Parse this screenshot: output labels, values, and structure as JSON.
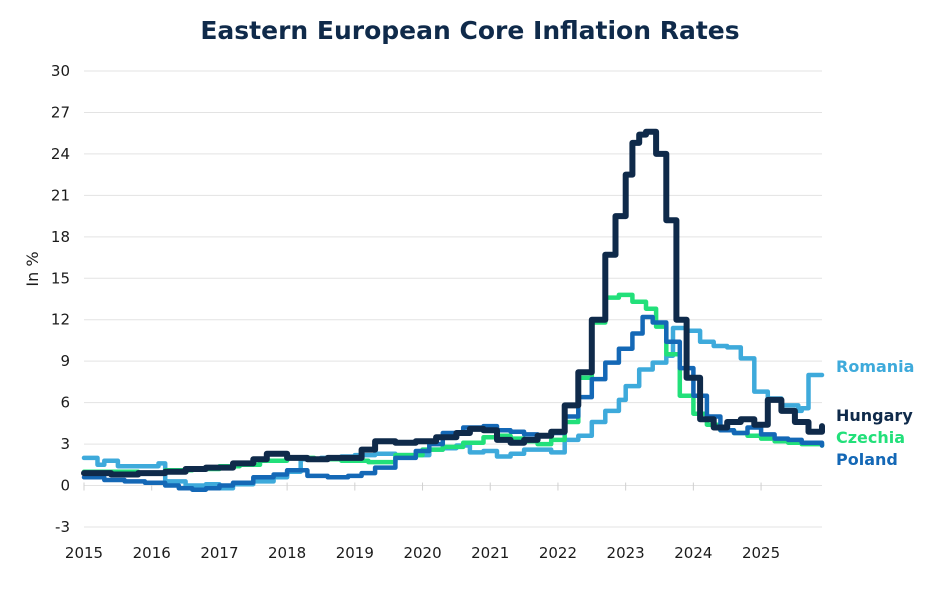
{
  "chart_data": {
    "type": "line",
    "title": "Eastern European Core Inflation Rates",
    "ylabel": "In %",
    "xlabel": "",
    "xlim": [
      2015,
      2025.9
    ],
    "ylim": [
      -3,
      30
    ],
    "yticks": [
      -3,
      0,
      3,
      6,
      9,
      12,
      15,
      18,
      21,
      24,
      27,
      30
    ],
    "xticks": [
      2015,
      2016,
      2017,
      2018,
      2019,
      2020,
      2021,
      2022,
      2023,
      2024,
      2025
    ],
    "grid": "horizontal",
    "legend": "right-end labels",
    "series": [
      {
        "name": "Romania",
        "color": "#3eaadb",
        "x": [
          2015,
          2015.1,
          2015.2,
          2015.3,
          2015.5,
          2015.8,
          2016.1,
          2016.2,
          2016.5,
          2016.8,
          2017.0,
          2017.2,
          2017.5,
          2017.8,
          2018.0,
          2018.2,
          2018.5,
          2018.8,
          2019.0,
          2019.3,
          2019.6,
          2019.9,
          2020.1,
          2020.3,
          2020.5,
          2020.7,
          2020.9,
          2021.1,
          2021.3,
          2021.5,
          2021.7,
          2021.9,
          2022.1,
          2022.3,
          2022.5,
          2022.7,
          2022.9,
          2023.0,
          2023.2,
          2023.4,
          2023.6,
          2023.7,
          2023.9,
          2024.1,
          2024.3,
          2024.5,
          2024.7,
          2024.9,
          2025.1,
          2025.3,
          2025.55,
          2025.6,
          2025.7,
          2025.9
        ],
        "values": [
          2.0,
          2.0,
          1.5,
          1.8,
          1.4,
          1.4,
          1.6,
          0.3,
          0.0,
          0.1,
          -0.2,
          0.1,
          0.3,
          0.6,
          1.0,
          1.9,
          2.0,
          2.1,
          2.2,
          2.3,
          2.2,
          2.2,
          2.6,
          2.7,
          2.9,
          2.4,
          2.5,
          2.1,
          2.3,
          2.6,
          2.6,
          2.4,
          3.3,
          3.6,
          4.6,
          5.4,
          6.2,
          7.2,
          8.4,
          8.9,
          9.4,
          11.4,
          11.2,
          10.4,
          10.1,
          10.0,
          9.2,
          6.8,
          6.3,
          5.8,
          5.4,
          5.6,
          8.0,
          8.0
        ]
      },
      {
        "name": "Hungary",
        "color": "#0f2a4a",
        "x": [
          2015,
          2015.4,
          2015.8,
          2016.2,
          2016.5,
          2016.8,
          2017.2,
          2017.5,
          2017.7,
          2018.0,
          2018.3,
          2018.6,
          2018.9,
          2019.1,
          2019.3,
          2019.6,
          2019.9,
          2020.2,
          2020.5,
          2020.7,
          2020.9,
          2021.1,
          2021.3,
          2021.5,
          2021.7,
          2021.9,
          2022.1,
          2022.3,
          2022.5,
          2022.7,
          2022.85,
          2023.0,
          2023.1,
          2023.2,
          2023.3,
          2023.45,
          2023.6,
          2023.75,
          2023.9,
          2024.1,
          2024.3,
          2024.5,
          2024.7,
          2024.9,
          2025.1,
          2025.3,
          2025.5,
          2025.7,
          2025.9
        ],
        "values": [
          0.9,
          0.8,
          0.9,
          1.0,
          1.2,
          1.3,
          1.6,
          1.9,
          2.3,
          2.0,
          1.9,
          2.0,
          2.0,
          2.6,
          3.2,
          3.1,
          3.2,
          3.5,
          3.8,
          4.1,
          4.0,
          3.3,
          3.1,
          3.3,
          3.6,
          3.9,
          5.8,
          8.2,
          12.0,
          16.7,
          19.5,
          22.5,
          24.8,
          25.4,
          25.6,
          24.0,
          19.2,
          12.0,
          7.8,
          4.8,
          4.2,
          4.6,
          4.8,
          4.4,
          6.2,
          5.4,
          4.6,
          3.9,
          4.3
        ]
      },
      {
        "name": "Czechia",
        "color": "#22e07a",
        "x": [
          2015,
          2015.4,
          2015.8,
          2016.2,
          2016.6,
          2017.0,
          2017.3,
          2017.6,
          2018.0,
          2018.4,
          2018.8,
          2019.2,
          2019.6,
          2020.0,
          2020.3,
          2020.6,
          2020.9,
          2021.1,
          2021.3,
          2021.5,
          2021.7,
          2021.9,
          2022.1,
          2022.3,
          2022.5,
          2022.7,
          2022.9,
          2023.1,
          2023.3,
          2023.45,
          2023.6,
          2023.8,
          2024.0,
          2024.2,
          2024.4,
          2024.6,
          2024.8,
          2025.0,
          2025.2,
          2025.4,
          2025.6,
          2025.9
        ],
        "values": [
          1.0,
          1.0,
          0.9,
          1.1,
          1.2,
          1.4,
          1.5,
          1.8,
          2.0,
          1.9,
          1.8,
          1.7,
          2.2,
          2.6,
          2.8,
          3.1,
          3.5,
          3.6,
          3.4,
          3.2,
          3.0,
          3.3,
          4.6,
          7.8,
          11.8,
          13.6,
          13.8,
          13.3,
          12.8,
          11.5,
          9.5,
          6.5,
          5.2,
          4.4,
          4.0,
          3.8,
          3.6,
          3.4,
          3.2,
          3.1,
          3.0,
          2.9
        ]
      },
      {
        "name": "Poland",
        "color": "#1468b6",
        "x": [
          2015,
          2015.3,
          2015.6,
          2015.9,
          2016.2,
          2016.4,
          2016.6,
          2016.8,
          2017.0,
          2017.2,
          2017.5,
          2017.8,
          2018.0,
          2018.3,
          2018.6,
          2018.9,
          2019.1,
          2019.3,
          2019.6,
          2019.9,
          2020.1,
          2020.3,
          2020.6,
          2020.9,
          2021.1,
          2021.3,
          2021.5,
          2021.7,
          2021.9,
          2022.1,
          2022.3,
          2022.5,
          2022.7,
          2022.9,
          2023.1,
          2023.25,
          2023.4,
          2023.6,
          2023.8,
          2024.0,
          2024.2,
          2024.4,
          2024.6,
          2024.8,
          2025.0,
          2025.2,
          2025.4,
          2025.6,
          2025.9
        ],
        "values": [
          0.6,
          0.4,
          0.3,
          0.2,
          0.0,
          -0.2,
          -0.3,
          -0.2,
          0.0,
          0.2,
          0.6,
          0.8,
          1.1,
          0.7,
          0.6,
          0.7,
          0.9,
          1.3,
          2.0,
          2.5,
          3.0,
          3.8,
          4.2,
          4.3,
          4.0,
          3.9,
          3.7,
          3.6,
          3.8,
          5.0,
          6.4,
          7.7,
          8.9,
          9.9,
          11.0,
          12.2,
          11.8,
          10.4,
          8.5,
          6.5,
          5.0,
          4.0,
          3.8,
          4.2,
          3.7,
          3.4,
          3.3,
          3.1,
          2.9
        ]
      }
    ]
  }
}
